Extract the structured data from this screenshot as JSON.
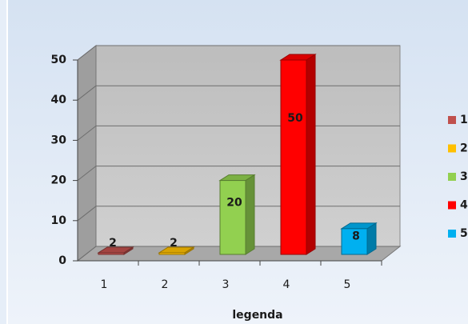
{
  "chart_data": {
    "type": "bar3d",
    "categories": [
      "1",
      "2",
      "3",
      "4",
      "5"
    ],
    "values": [
      2,
      2,
      20,
      50,
      8
    ],
    "colors": [
      "#c0504d",
      "#ffc000",
      "#92d050",
      "#ff0000",
      "#00b0f0"
    ],
    "x_label": "legenda",
    "ylim": [
      0,
      50
    ],
    "yticks": [
      0,
      10,
      20,
      30,
      40,
      50
    ],
    "grid": true,
    "legend": "right"
  }
}
